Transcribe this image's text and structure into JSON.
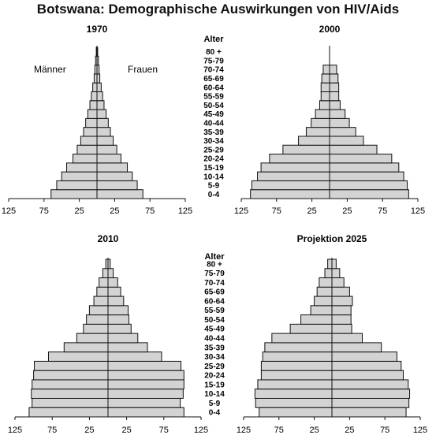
{
  "title": "Botswana: Demographische Auswirkungen von HIV/Aids",
  "age_header": "Alter",
  "labels": {
    "male": "Männer",
    "female": "Frauen"
  },
  "colors": {
    "bar_fill": "#d3d3d3",
    "bar_stroke": "#111111"
  },
  "chart_data": [
    {
      "type": "bar",
      "orientation": "horizontal",
      "title": "1970",
      "categories": [
        "0-4",
        "5-9",
        "10-14",
        "15-19",
        "20-24",
        "25-29",
        "30-34",
        "35-39",
        "40-44",
        "45-49",
        "50-54",
        "55-59",
        "60-64",
        "65-69",
        "70-74",
        "75-79",
        "80 +"
      ],
      "series": [
        {
          "name": "Männer",
          "values": [
            65,
            57,
            50,
            43,
            34,
            28,
            23,
            19,
            16,
            13,
            10,
            8,
            6,
            4,
            3,
            2,
            1
          ]
        },
        {
          "name": "Frauen",
          "values": [
            65,
            57,
            50,
            43,
            34,
            28,
            23,
            19,
            16,
            13,
            10,
            8,
            6,
            4,
            3,
            2,
            1
          ]
        }
      ],
      "x_ticks": [
        "125",
        "75",
        "25",
        "25",
        "75",
        "125"
      ],
      "xlim": [
        -125,
        125
      ]
    },
    {
      "type": "bar",
      "orientation": "horizontal",
      "title": "2000",
      "categories": [
        "0-4",
        "5-9",
        "10-14",
        "15-19",
        "20-24",
        "25-29",
        "30-34",
        "35-39",
        "40-44",
        "45-49",
        "50-54",
        "55-59",
        "60-64",
        "65-69",
        "70-74",
        "75-79",
        "80 +"
      ],
      "series": [
        {
          "name": "Männer",
          "values": [
            112,
            110,
            102,
            97,
            85,
            66,
            44,
            33,
            26,
            20,
            14,
            12,
            12,
            11,
            9,
            0,
            0
          ]
        },
        {
          "name": "Frauen",
          "values": [
            112,
            110,
            105,
            98,
            88,
            67,
            48,
            37,
            28,
            22,
            15,
            13,
            13,
            12,
            10,
            0,
            0
          ]
        }
      ],
      "x_ticks": [
        "125",
        "75",
        "25",
        "25",
        "75",
        "125"
      ],
      "xlim": [
        -125,
        125
      ]
    },
    {
      "type": "bar",
      "orientation": "horizontal",
      "title": "2010",
      "categories": [
        "0-4",
        "5-9",
        "10-14",
        "15-19",
        "20-24",
        "25-29",
        "30-34",
        "35-39",
        "40-44",
        "45-49",
        "50-54",
        "55-59",
        "60-64",
        "65-69",
        "70-74",
        "75-79",
        "80 +"
      ],
      "series": [
        {
          "name": "Männer",
          "values": [
            106,
            102,
            103,
            102,
            100,
            99,
            80,
            59,
            42,
            33,
            29,
            25,
            19,
            15,
            12,
            7,
            3
          ]
        },
        {
          "name": "Frauen",
          "values": [
            102,
            97,
            101,
            102,
            102,
            98,
            72,
            53,
            40,
            31,
            28,
            27,
            21,
            17,
            13,
            7,
            3
          ]
        }
      ],
      "x_ticks": [
        "125",
        "75",
        "25",
        "25",
        "75",
        "125"
      ],
      "xlim": [
        -125,
        125
      ]
    },
    {
      "type": "bar",
      "orientation": "horizontal",
      "title": "Projektion 2025",
      "categories": [
        "0-4",
        "5-9",
        "10-14",
        "15-19",
        "20-24",
        "25-29",
        "30-34",
        "35-39",
        "40-44",
        "45-49",
        "50-54",
        "55-59",
        "60-64",
        "65-69",
        "70-74",
        "75-79",
        "80 +"
      ],
      "series": [
        {
          "name": "Männer",
          "values": [
            103,
            108,
            109,
            105,
            100,
            100,
            98,
            95,
            85,
            59,
            44,
            30,
            25,
            21,
            18,
            10,
            6
          ]
        },
        {
          "name": "Frauen",
          "values": [
            105,
            109,
            110,
            108,
            101,
            98,
            92,
            70,
            43,
            28,
            27,
            27,
            29,
            25,
            17,
            11,
            6
          ]
        }
      ],
      "x_ticks": [
        "125",
        "75",
        "25",
        "25",
        "75",
        "125"
      ],
      "xlim": [
        -125,
        125
      ]
    }
  ]
}
